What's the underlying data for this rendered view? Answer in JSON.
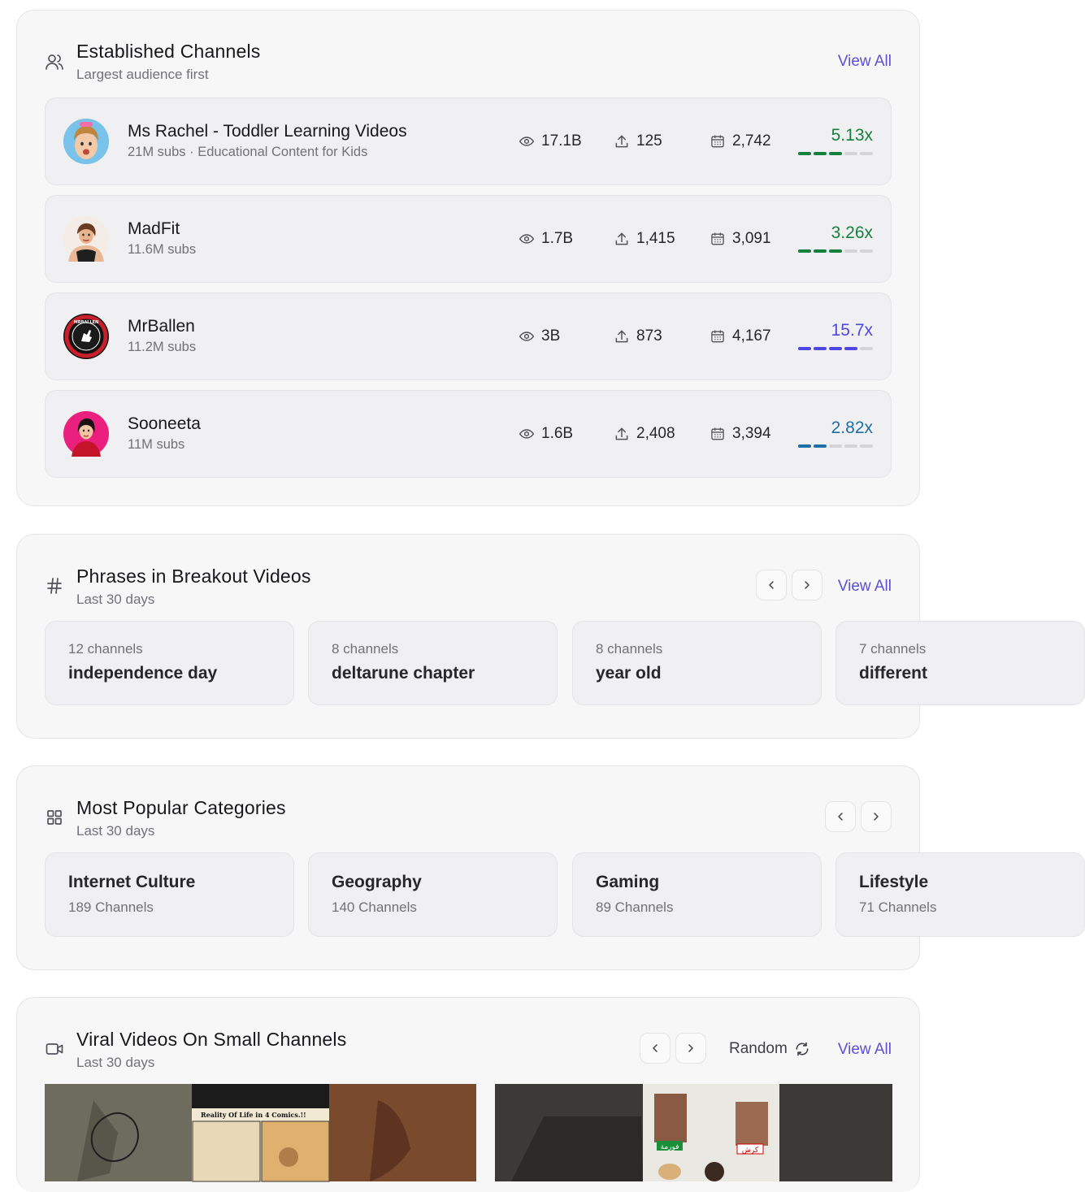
{
  "established": {
    "title": "Established Channels",
    "subtitle": "Largest audience first",
    "view_all": "View All",
    "channels": [
      {
        "name": "Ms Rachel - Toddler Learning Videos",
        "sub": "21M subs · Educational Content for Kids",
        "views": "17.1B",
        "uploads": "125",
        "days": "2,742",
        "multiplier": "5.13x",
        "color": "#15803d",
        "level": 3
      },
      {
        "name": "MadFit",
        "sub": "11.6M subs",
        "views": "1.7B",
        "uploads": "1,415",
        "days": "3,091",
        "multiplier": "3.26x",
        "color": "#15803d",
        "level": 3
      },
      {
        "name": "MrBallen",
        "sub": "11.2M subs",
        "views": "3B",
        "uploads": "873",
        "days": "4,167",
        "multiplier": "15.7x",
        "color": "#4f46e5",
        "level": 4
      },
      {
        "name": "Sooneeta",
        "sub": "11M subs",
        "views": "1.6B",
        "uploads": "2,408",
        "days": "3,394",
        "multiplier": "2.82x",
        "color": "#1d6fa5",
        "level": 2
      }
    ]
  },
  "phrases": {
    "title": "Phrases in Breakout Videos",
    "subtitle": "Last 30 days",
    "view_all": "View All",
    "items": [
      {
        "count": "12 channels",
        "phrase": "independence day"
      },
      {
        "count": "8 channels",
        "phrase": "deltarune chapter"
      },
      {
        "count": "8 channels",
        "phrase": "year old"
      },
      {
        "count": "7 channels",
        "phrase": "different"
      }
    ]
  },
  "categories": {
    "title": "Most Popular Categories",
    "subtitle": "Last 30 days",
    "items": [
      {
        "name": "Internet Culture",
        "count": "189 Channels"
      },
      {
        "name": "Geography",
        "count": "140 Channels"
      },
      {
        "name": "Gaming",
        "count": "89 Channels"
      },
      {
        "name": "Lifestyle",
        "count": "71 Channels"
      }
    ]
  },
  "viral": {
    "title": "Viral Videos On Small Channels",
    "subtitle": "Last 30 days",
    "random_label": "Random",
    "view_all": "View All",
    "thumb1_caption": "Reality Of Life in 4 Comics.!!",
    "thumb2_tag_left": "فورمة",
    "thumb2_tag_right": "كرش"
  },
  "icons": {
    "users": "users-icon",
    "hash": "hash-icon",
    "grid": "grid-icon",
    "video": "video-icon",
    "eye": "eye-icon",
    "upload": "upload-icon",
    "calendar": "calendar-icon",
    "refresh": "refresh-icon"
  }
}
